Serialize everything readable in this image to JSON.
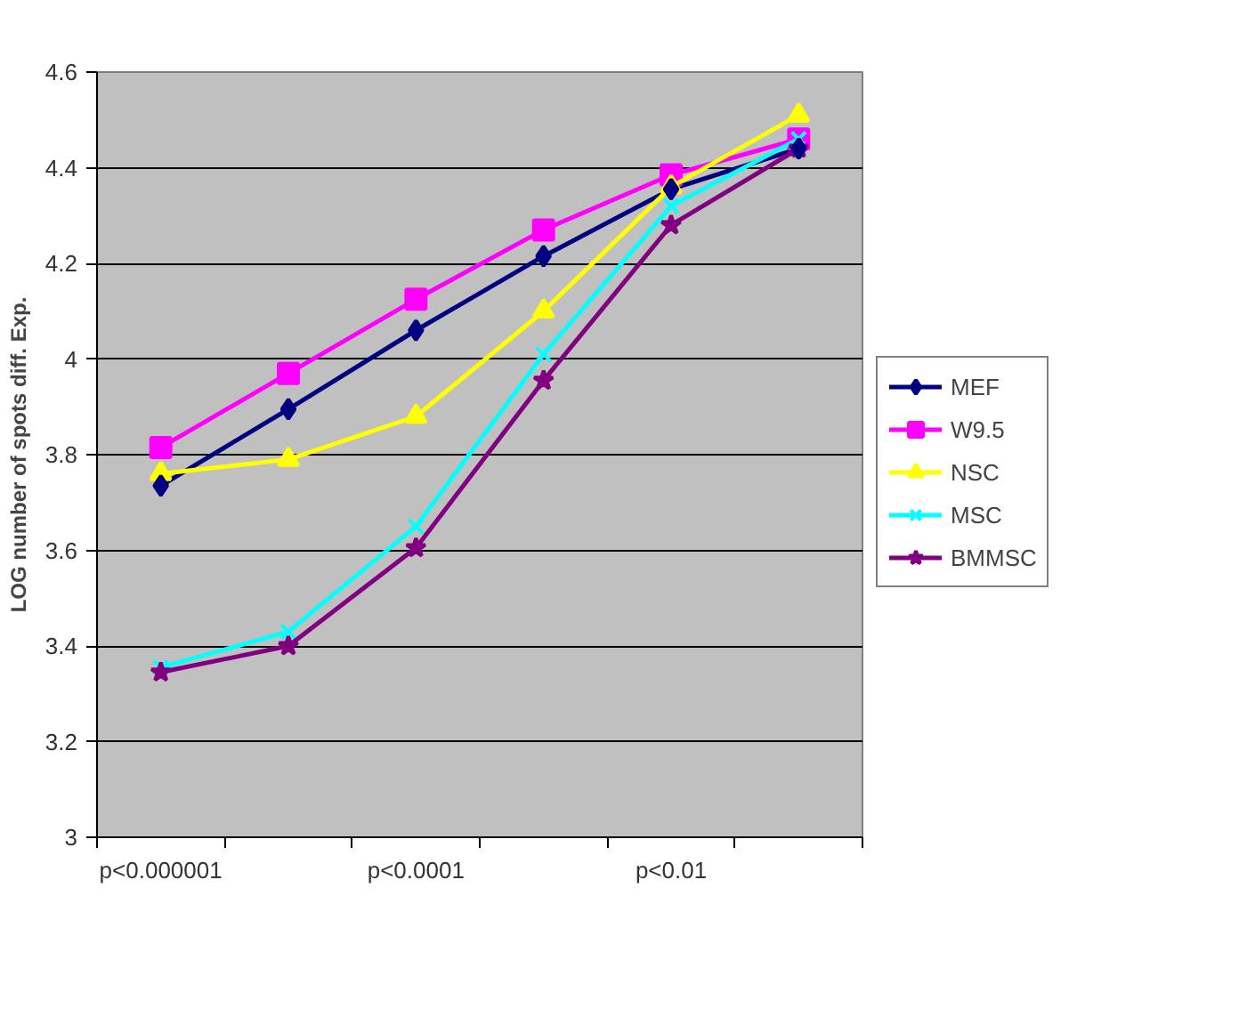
{
  "chart_data": {
    "type": "line",
    "ylabel": "LOG number of spots diff. Exp.",
    "categories": [
      "p<0.000001",
      null,
      "p<0.0001",
      null,
      "p<0.01",
      null
    ],
    "series": [
      {
        "name": "MEF",
        "color": "#000080",
        "marker": "diamond",
        "values": [
          3.735,
          3.895,
          4.06,
          4.215,
          4.355,
          4.44
        ]
      },
      {
        "name": "W9.5",
        "color": "#ff00ff",
        "marker": "square",
        "values": [
          3.815,
          3.97,
          4.125,
          4.27,
          4.385,
          4.46
        ]
      },
      {
        "name": "NSC",
        "color": "#ffff00",
        "marker": "triangle",
        "values": [
          3.76,
          3.79,
          3.88,
          4.1,
          4.36,
          4.51
        ]
      },
      {
        "name": "MSC",
        "color": "#00ffff",
        "marker": "cross",
        "values": [
          3.355,
          3.43,
          3.65,
          4.01,
          4.32,
          4.46
        ]
      },
      {
        "name": "BMMSC",
        "color": "#800080",
        "marker": "star",
        "values": [
          3.345,
          3.4,
          3.605,
          3.955,
          4.28,
          4.44
        ]
      }
    ],
    "ylim": [
      3,
      4.6
    ],
    "yticks": [
      3,
      3.2,
      3.4,
      3.6,
      3.8,
      4,
      4.2,
      4.4,
      4.6
    ],
    "grid": "y",
    "legend": "right",
    "line_style": "solid"
  }
}
